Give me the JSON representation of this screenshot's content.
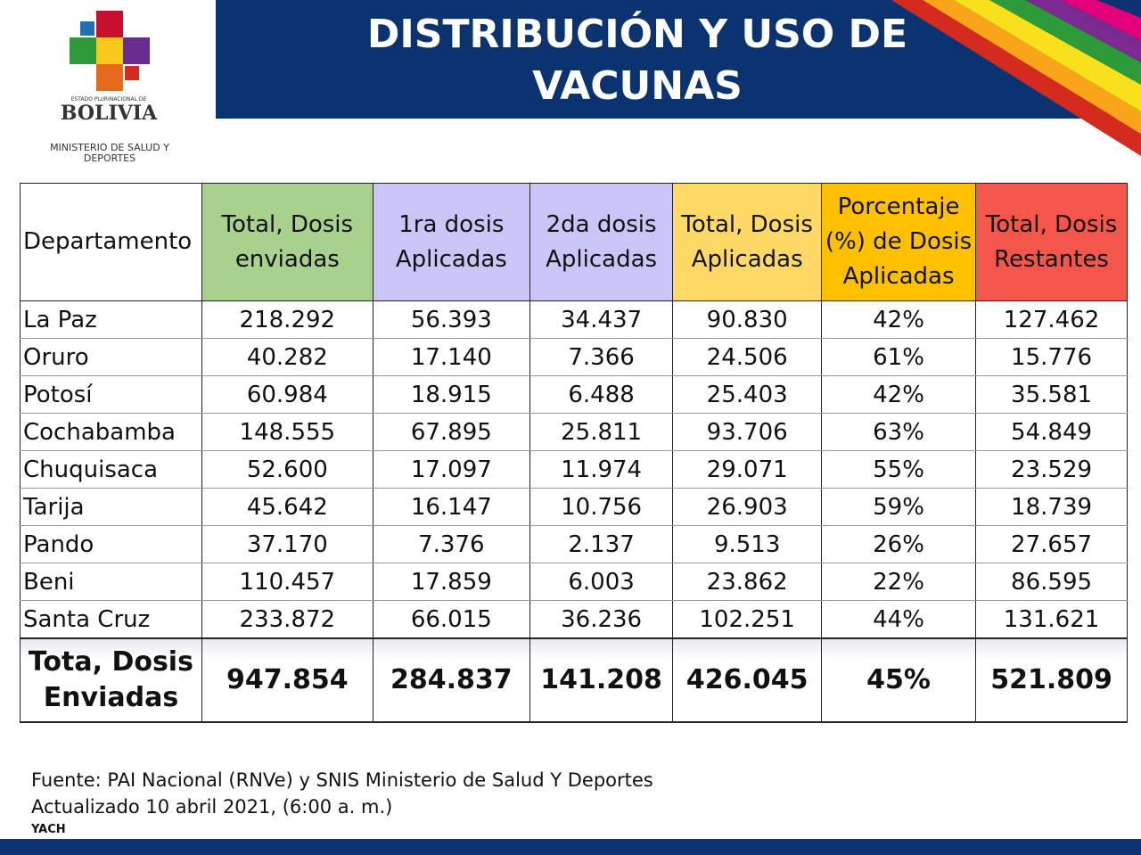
{
  "header": {
    "title": "DISTRIBUCIÓN Y USO DE VACUNAS"
  },
  "logo": {
    "state": "ESTADO PLURINACIONAL DE",
    "country": "BOLIVIA",
    "ministry": "MINISTERIO DE SALUD Y DEPORTES"
  },
  "table": {
    "columns": [
      "Departamento",
      "Total, Dosis enviadas",
      "1ra dosis Aplicadas",
      "2da dosis Aplicadas",
      "Total, Dosis Aplicadas",
      "Porcentaje (%) de Dosis Aplicadas",
      "Total, Dosis Restantes"
    ],
    "column_colors": [
      "#ffffff",
      "#a9d18e",
      "#c9c6f7",
      "#c9c6f7",
      "#ffd966",
      "#ffc000",
      "#f4574a"
    ],
    "rows": [
      [
        "La Paz",
        "218.292",
        "56.393",
        "34.437",
        "90.830",
        "42%",
        "127.462"
      ],
      [
        "Oruro",
        "40.282",
        "17.140",
        "7.366",
        "24.506",
        "61%",
        "15.776"
      ],
      [
        "Potosí",
        "60.984",
        "18.915",
        "6.488",
        "25.403",
        "42%",
        "35.581"
      ],
      [
        "Cochabamba",
        "148.555",
        "67.895",
        "25.811",
        "93.706",
        "63%",
        "54.849"
      ],
      [
        "Chuquisaca",
        "52.600",
        "17.097",
        "11.974",
        "29.071",
        "55%",
        "23.529"
      ],
      [
        "Tarija",
        "45.642",
        "16.147",
        "10.756",
        "26.903",
        "59%",
        "18.739"
      ],
      [
        "Pando",
        "37.170",
        "7.376",
        "2.137",
        "9.513",
        "26%",
        "27.657"
      ],
      [
        "Beni",
        "110.457",
        "17.859",
        "6.003",
        "23.862",
        "22%",
        "86.595"
      ],
      [
        "Santa Cruz",
        "233.872",
        "66.015",
        "36.236",
        "102.251",
        "44%",
        "131.621"
      ]
    ],
    "total": [
      "Tota, Dosis Enviadas",
      "947.854",
      "284.837",
      "141.208",
      "426.045",
      "45%",
      "521.809"
    ]
  },
  "footer": {
    "source": "Fuente: PAI Nacional (RNVe) y SNIS Ministerio de Salud Y Deportes",
    "updated": "Actualizado 10 abril 2021, (6:00 a. m.)",
    "author": "YACH"
  }
}
